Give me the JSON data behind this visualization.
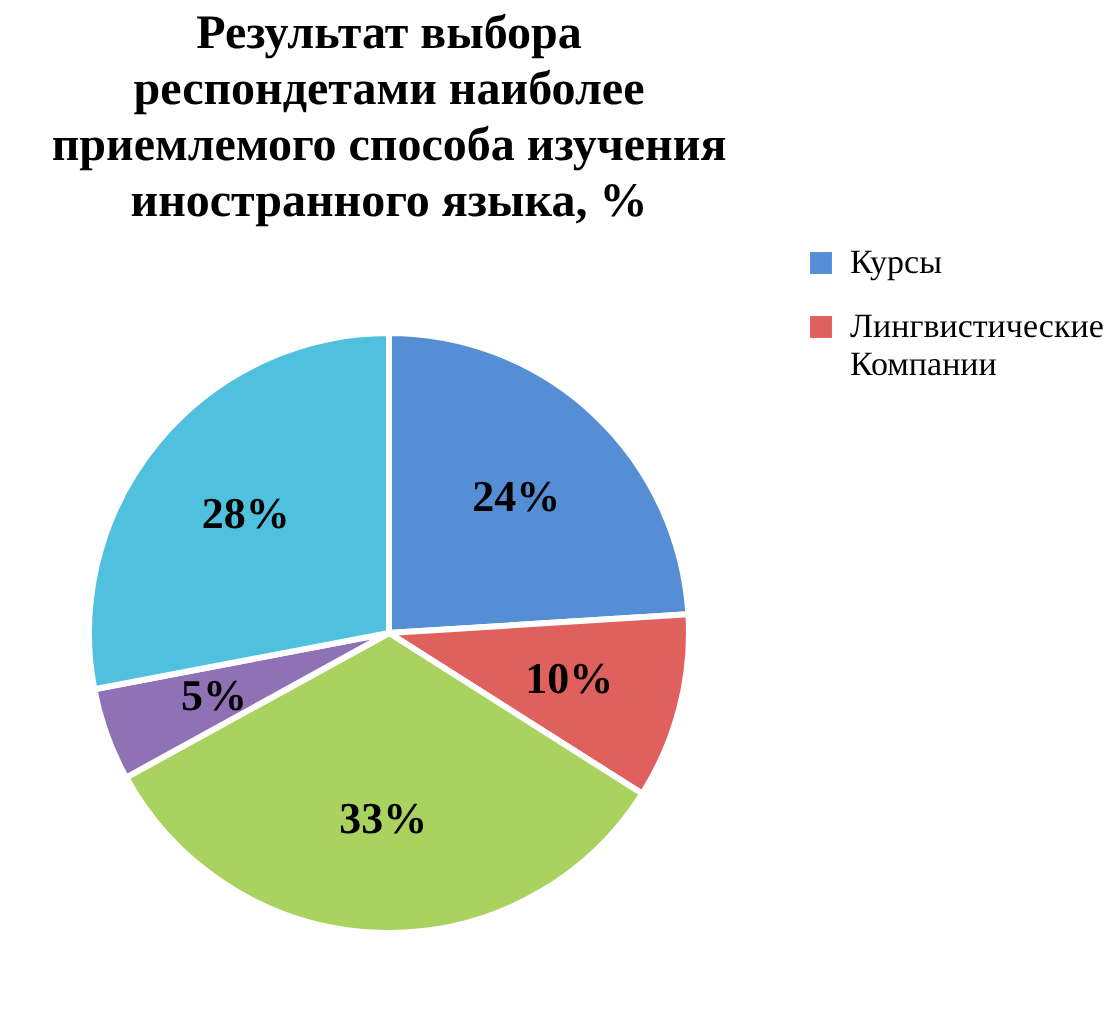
{
  "chart_data": {
    "type": "pie",
    "title": "Результат выбора респондетами наиболее приемлемого способа изучения иностранного языка, %",
    "categories": [
      "Курсы",
      "Лингвистические Компании",
      null,
      null,
      null
    ],
    "values": [
      24,
      10,
      33,
      5,
      28
    ],
    "value_labels": [
      "24%",
      "10%",
      "33%",
      "5%",
      "28%"
    ],
    "colors": [
      "#558ed5",
      "#e0605d",
      "#a9d25f",
      "#8f72b5",
      "#4fc0de"
    ],
    "legend": "right"
  }
}
